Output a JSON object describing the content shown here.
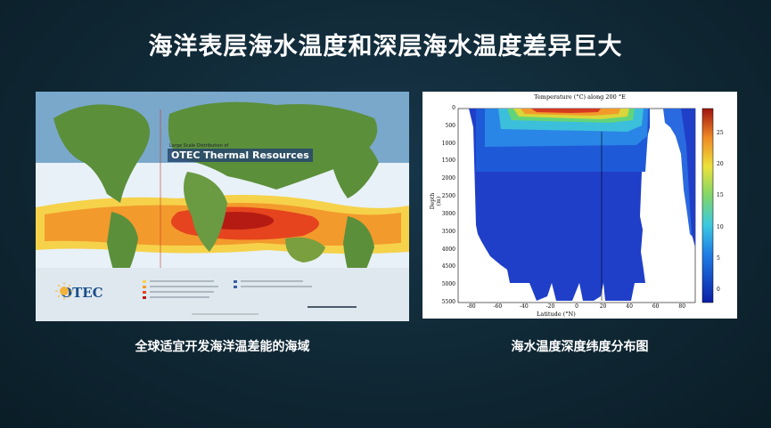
{
  "slide": {
    "title": "海洋表层海水温度和深层海水温度差异巨大",
    "left_caption": "全球适宜开发海洋温差能的海域",
    "right_caption": "海水温度深度纬度分布图"
  },
  "map": {
    "small_title": "Large Scale Distribution of",
    "title": "OTEC Thermal Resources",
    "logo": "OTEC"
  },
  "chart_data": {
    "type": "heatmap",
    "title": "Temperature (°C) along 200 °E",
    "xlabel": "Latitude (°N)",
    "ylabel": "Depth (m)",
    "x_ticks": [
      "-80",
      "-60",
      "-40",
      "-20",
      "0",
      "20",
      "40",
      "60",
      "80"
    ],
    "y_ticks": [
      "0",
      "500",
      "1000",
      "1500",
      "2000",
      "2500",
      "3000",
      "3500",
      "4000",
      "4500",
      "5000",
      "5500"
    ],
    "colorbar_ticks": [
      "25",
      "20",
      "15",
      "10",
      "5",
      "0"
    ],
    "xlim": [
      -90,
      90
    ],
    "ylim": [
      5500,
      0
    ],
    "colorbar_range": [
      -2,
      29
    ]
  }
}
